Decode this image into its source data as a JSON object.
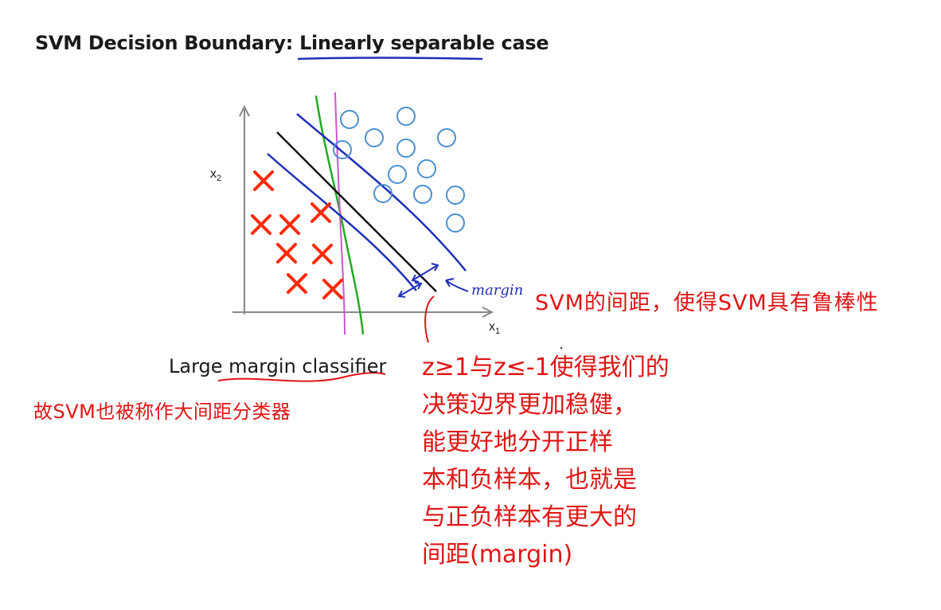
{
  "title": {
    "prefix": "SVM Decision Boundary: ",
    "emphasis": "Linearly separable",
    "suffix": " case"
  },
  "axes": {
    "x_label": "x",
    "x_sub": "1",
    "y_label": "x",
    "y_sub": "2"
  },
  "annotation_margin": "margin",
  "caption": "Large margin classifier",
  "handwritten": {
    "right_note": "SVM的间距，使得SVM具有鲁棒性",
    "left_note": "故SVM也被称作大间距分类器",
    "block_lines": [
      "z≥1与z≤-1使得我们的",
      "决策边界更加稳健，",
      "能更好地分开正样",
      "本和负样本，也就是",
      "与正负样本有更大的",
      "间距(margin)"
    ]
  },
  "colors": {
    "cross": "#ff2a0a",
    "circle": "#4a8fd0",
    "margin_lines": "#1f2fb8",
    "decision_boundary": "#111111",
    "green_boundary": "#22aa22",
    "magenta_boundary": "#cc55cc",
    "handwriting": "#e01515"
  }
}
